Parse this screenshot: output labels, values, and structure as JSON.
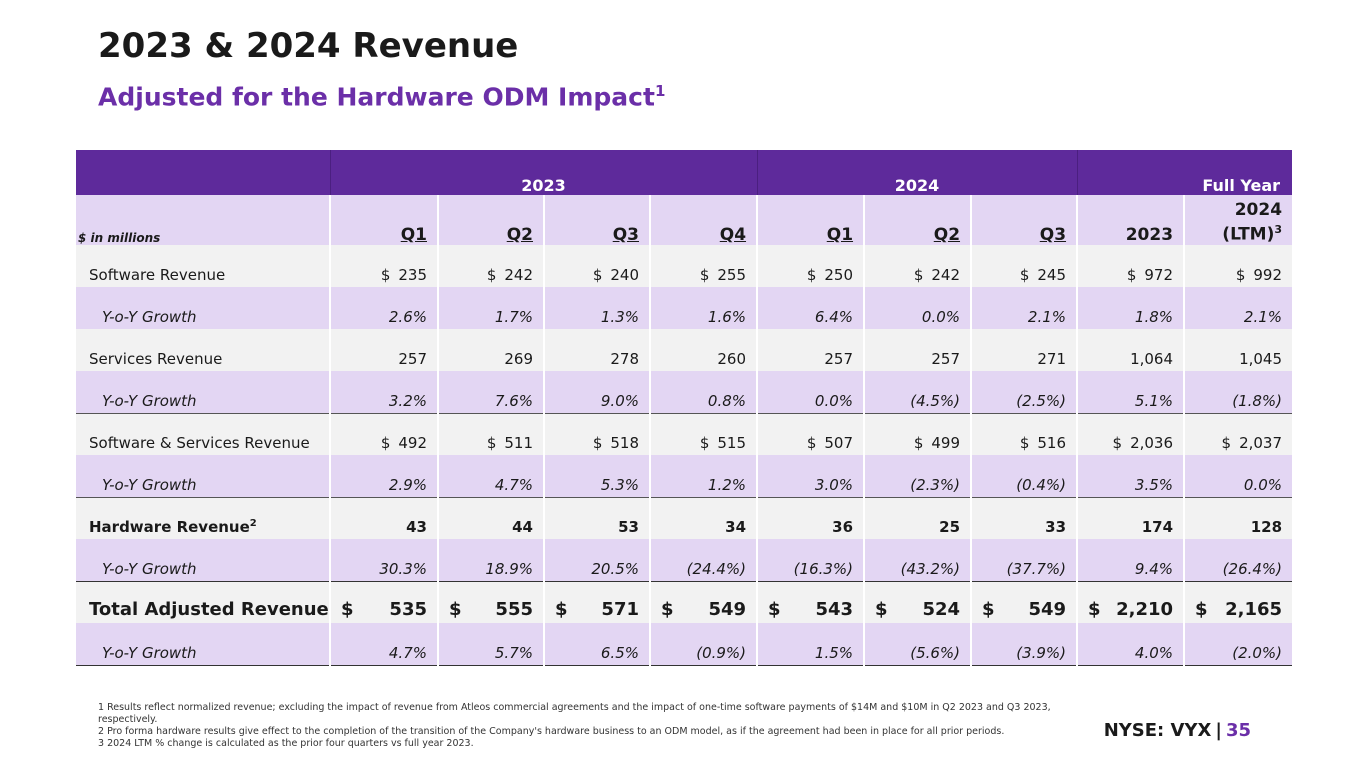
{
  "title": "2023 & 2024 Revenue",
  "subtitle": "Adjusted for the Hardware ODM Impact",
  "subtitle_sup": "1",
  "table": {
    "group_headers": {
      "y2023": "2023",
      "y2024": "2024",
      "full_year": "Full Year"
    },
    "units_label": "$ in millions",
    "columns": [
      "Q1",
      "Q2",
      "Q3",
      "Q4",
      "Q1",
      "Q2",
      "Q3",
      "2023"
    ],
    "ltm_line1": "2024",
    "ltm_line2": "(LTM)",
    "ltm_sup": "3",
    "rows": [
      {
        "label": "Software Revenue",
        "currency": "$",
        "values": [
          "235",
          "242",
          "240",
          "255",
          "250",
          "242",
          "245",
          "972",
          "992"
        ]
      },
      {
        "label": "Y-o-Y Growth",
        "values": [
          "2.6%",
          "1.7%",
          "1.3%",
          "1.6%",
          "6.4%",
          "0.0%",
          "2.1%",
          "1.8%",
          "2.1%"
        ]
      },
      {
        "label": "Services Revenue",
        "values": [
          "257",
          "269",
          "278",
          "260",
          "257",
          "257",
          "271",
          "1,064",
          "1,045"
        ]
      },
      {
        "label": "Y-o-Y Growth",
        "values": [
          "3.2%",
          "7.6%",
          "9.0%",
          "0.8%",
          "0.0%",
          "(4.5%)",
          "(2.5%)",
          "5.1%",
          "(1.8%)"
        ]
      },
      {
        "label": "Software & Services Revenue",
        "currency": "$",
        "values": [
          "492",
          "511",
          "518",
          "515",
          "507",
          "499",
          "516",
          "2,036",
          "2,037"
        ]
      },
      {
        "label": "Y-o-Y Growth",
        "values": [
          "2.9%",
          "4.7%",
          "5.3%",
          "1.2%",
          "3.0%",
          "(2.3%)",
          "(0.4%)",
          "3.5%",
          "0.0%"
        ]
      },
      {
        "label": "Hardware Revenue",
        "label_sup": "2",
        "values": [
          "43",
          "44",
          "53",
          "34",
          "36",
          "25",
          "33",
          "174",
          "128"
        ]
      },
      {
        "label": "Y-o-Y Growth",
        "values": [
          "30.3%",
          "18.9%",
          "20.5%",
          "(24.4%)",
          "(16.3%)",
          "(43.2%)",
          "(37.7%)",
          "9.4%",
          "(26.4%)"
        ]
      },
      {
        "label": "Total Adjusted Revenue",
        "currency": "$",
        "values": [
          "535",
          "555",
          "571",
          "549",
          "543",
          "524",
          "549",
          "2,210",
          "2,165"
        ]
      },
      {
        "label": "Y-o-Y Growth",
        "values": [
          "4.7%",
          "5.7%",
          "6.5%",
          "(0.9%)",
          "1.5%",
          "(5.6%)",
          "(3.9%)",
          "4.0%",
          "(2.0%)"
        ]
      }
    ]
  },
  "footnotes": [
    "1 Results reflect normalized revenue; excluding the impact of revenue from Atleos commercial agreements and the impact of one-time software payments of $14M and $10M in Q2 2023 and Q3 2023, respectively.",
    "2 Pro forma hardware results give effect to the completion of the transition of the Company's hardware business to an ODM model, as if the agreement had been in place for all prior periods.",
    "3 2024 LTM % change is calculated as the prior four quarters vs full year 2023."
  ],
  "brand": {
    "ticker": "NYSE: VYX",
    "separator": "|",
    "page": "35"
  },
  "colors": {
    "header_purple": "#5e2a9b",
    "accent_purple": "#6b2fa8",
    "light_purple": "#e3d6f3",
    "light_gray": "#f2f2f2"
  }
}
